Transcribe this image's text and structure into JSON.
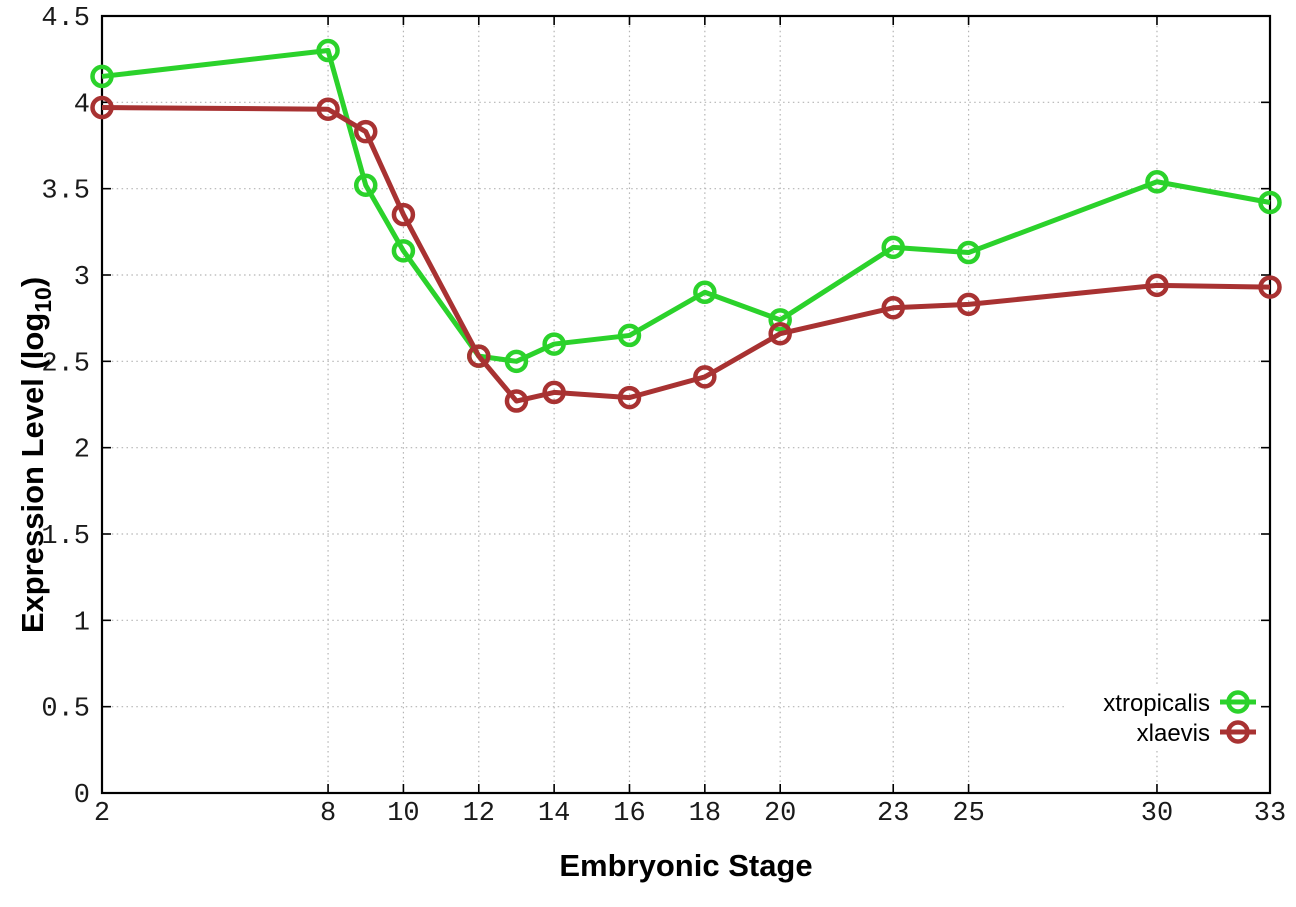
{
  "chart_data": {
    "type": "line",
    "title": "",
    "xlabel": "Embryonic Stage",
    "ylabel": "Expression Level (log10)",
    "ylabel_prefix": "Expression Level (log",
    "ylabel_sub": "10",
    "ylabel_suffix": ")",
    "x": [
      2,
      8,
      9,
      10,
      12,
      13,
      14,
      16,
      18,
      20,
      23,
      25,
      30,
      33
    ],
    "xticks": [
      2,
      8,
      10,
      12,
      14,
      16,
      18,
      20,
      23,
      25,
      30,
      33
    ],
    "yticks": [
      0,
      0.5,
      1,
      1.5,
      2,
      2.5,
      3,
      3.5,
      4,
      4.5
    ],
    "ytick_labels": [
      "0",
      "0.5",
      "1",
      "1.5",
      "2",
      "2.5",
      "3",
      "3.5",
      "4",
      "4.5"
    ],
    "xlim": [
      2,
      33
    ],
    "ylim": [
      0,
      4.5
    ],
    "grid": true,
    "marker_shape": "open-circle",
    "legend_position": "inside-bottom-right",
    "series": [
      {
        "name": "xtropicalis",
        "color": "#2bd22b",
        "values": [
          4.15,
          4.3,
          3.52,
          3.14,
          2.53,
          2.5,
          2.6,
          2.65,
          2.9,
          2.74,
          3.16,
          3.13,
          3.54,
          3.42
        ]
      },
      {
        "name": "xlaevis",
        "color": "#a83232",
        "values": [
          3.97,
          3.96,
          3.83,
          3.35,
          2.53,
          2.27,
          2.32,
          2.29,
          2.41,
          2.66,
          2.81,
          2.83,
          2.94,
          2.93
        ]
      }
    ],
    "colors": {
      "grid": "#b4b4b4",
      "axis": "#000000",
      "background": "#ffffff"
    }
  }
}
